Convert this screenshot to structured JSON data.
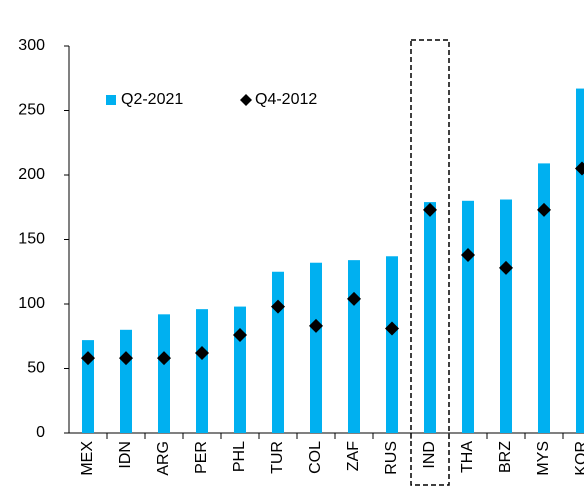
{
  "chart_data": {
    "type": "bar",
    "categories": [
      "MEX",
      "IDN",
      "ARG",
      "PER",
      "PHL",
      "TUR",
      "COL",
      "ZAF",
      "RUS",
      "IND",
      "THA",
      "BRZ",
      "MYS",
      "KOR"
    ],
    "series": [
      {
        "name": "Q2-2021",
        "color": "#00b0f0",
        "values": [
          72,
          80,
          92,
          96,
          98,
          125,
          132,
          134,
          137,
          179,
          180,
          181,
          209,
          267
        ]
      },
      {
        "name": "Q4-2012",
        "color": "#000000",
        "marker": "diamond",
        "values": [
          58,
          58,
          58,
          62,
          76,
          98,
          83,
          104,
          81,
          173,
          138,
          128,
          173,
          205
        ]
      }
    ],
    "highlight": "IND",
    "ylim": [
      0,
      300
    ],
    "yticks": [
      0,
      50,
      100,
      150,
      200,
      250,
      300
    ],
    "grid": false
  }
}
